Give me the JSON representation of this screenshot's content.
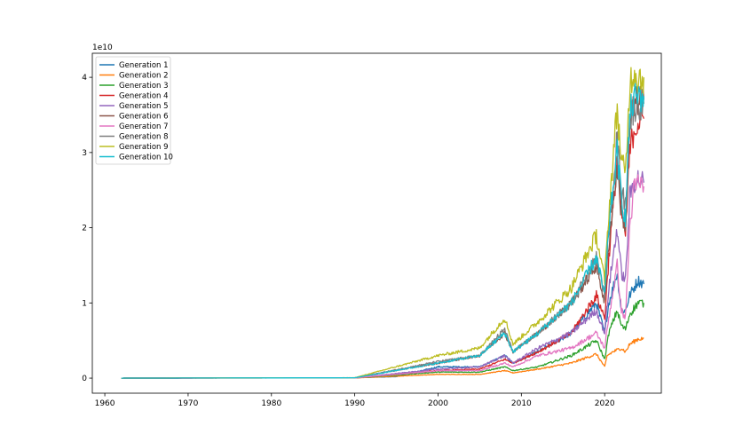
{
  "chart_data": {
    "type": "line",
    "title": "",
    "xlabel": "",
    "ylabel": "",
    "y_offset_label": "1e10",
    "xlim": [
      1958.5,
      2026.8
    ],
    "ylim": [
      -0.2,
      4.32
    ],
    "x_ticks": [
      1960,
      1970,
      1980,
      1990,
      2000,
      2010,
      2020
    ],
    "x_tick_labels": [
      "1960",
      "1970",
      "1980",
      "1990",
      "2000",
      "2010",
      "2020"
    ],
    "y_ticks": [
      0,
      1,
      2,
      3,
      4
    ],
    "y_tick_labels": [
      "0",
      "1",
      "2",
      "3",
      "4"
    ],
    "legend_position": "top-left",
    "grid": false,
    "series": [
      {
        "name": "Generation 1",
        "color": "#1f77b4",
        "x": [
          1962,
          1990,
          1995,
          2000,
          2005,
          2008,
          2009,
          2012,
          2016,
          2019,
          2020,
          2020.5,
          2021.5,
          2022,
          2022.5,
          2023,
          2024,
          2024.7
        ],
        "y": [
          0,
          0.005,
          0.02,
          0.15,
          0.15,
          0.3,
          0.2,
          0.35,
          0.6,
          1.0,
          0.6,
          1.0,
          1.4,
          0.9,
          0.9,
          1.1,
          1.3,
          1.25
        ]
      },
      {
        "name": "Generation 2",
        "color": "#ff7f0e",
        "x": [
          1962,
          1990,
          2000,
          2005,
          2008,
          2009,
          2012,
          2016,
          2019,
          2020,
          2020.3,
          2021,
          2022,
          2022.5,
          2023,
          2024,
          2024.7
        ],
        "y": [
          0,
          0.002,
          0.05,
          0.05,
          0.1,
          0.07,
          0.12,
          0.2,
          0.32,
          0.15,
          0.3,
          0.35,
          0.4,
          0.35,
          0.45,
          0.52,
          0.53
        ]
      },
      {
        "name": "Generation 3",
        "color": "#2ca02c",
        "x": [
          1962,
          1990,
          2000,
          2005,
          2008,
          2009,
          2012,
          2016,
          2019,
          2020,
          2020.5,
          2021.5,
          2022,
          2022.5,
          2023,
          2024,
          2024.7
        ],
        "y": [
          0,
          0.003,
          0.08,
          0.08,
          0.15,
          0.1,
          0.15,
          0.3,
          0.5,
          0.25,
          0.6,
          0.9,
          0.7,
          0.65,
          0.85,
          1.0,
          1.0
        ]
      },
      {
        "name": "Generation 4",
        "color": "#d62728",
        "x": [
          1962,
          1990,
          2000,
          2005,
          2008,
          2009,
          2012,
          2016,
          2019,
          2020,
          2020.5,
          2021.5,
          2022,
          2022.5,
          2023,
          2023.5,
          2024,
          2024.7
        ],
        "y": [
          0,
          0.004,
          0.1,
          0.12,
          0.25,
          0.2,
          0.35,
          0.6,
          1.1,
          0.8,
          1.6,
          2.9,
          2.2,
          1.9,
          3.0,
          3.3,
          3.4,
          3.45
        ]
      },
      {
        "name": "Generation 5",
        "color": "#9467bd",
        "x": [
          1962,
          1990,
          2000,
          2005,
          2008,
          2009,
          2012,
          2016,
          2019,
          2020,
          2020.5,
          2021.5,
          2022,
          2022.5,
          2023,
          2023.5,
          2024,
          2024.7
        ],
        "y": [
          0,
          0.004,
          0.12,
          0.15,
          0.3,
          0.2,
          0.4,
          0.6,
          0.9,
          0.6,
          1.2,
          2.0,
          1.4,
          1.3,
          2.4,
          2.6,
          2.65,
          2.6
        ]
      },
      {
        "name": "Generation 6",
        "color": "#8c564b",
        "x": [
          1962,
          1990,
          2000,
          2005,
          2008,
          2009,
          2012,
          2016,
          2019,
          2020,
          2020.5,
          2021.5,
          2022,
          2022.5,
          2023,
          2023.5,
          2024,
          2024.7
        ],
        "y": [
          0,
          0.005,
          0.2,
          0.3,
          0.6,
          0.35,
          0.6,
          1.0,
          1.5,
          1.0,
          1.8,
          2.8,
          2.2,
          2.0,
          3.3,
          3.6,
          3.7,
          3.7
        ]
      },
      {
        "name": "Generation 7",
        "color": "#e377c2",
        "x": [
          1962,
          1990,
          2000,
          2005,
          2008,
          2009,
          2012,
          2016,
          2019,
          2020,
          2020.5,
          2021.5,
          2022,
          2022.5,
          2023,
          2023.5,
          2024,
          2024.7
        ],
        "y": [
          0,
          0.003,
          0.1,
          0.1,
          0.2,
          0.15,
          0.3,
          0.4,
          0.6,
          0.4,
          0.8,
          1.5,
          0.9,
          0.8,
          2.0,
          2.5,
          2.6,
          2.55
        ]
      },
      {
        "name": "Generation 8",
        "color": "#7f7f7f",
        "x": [
          1962,
          1990,
          2000,
          2005,
          2008,
          2009,
          2012,
          2016,
          2019,
          2020,
          2020.5,
          2021.5,
          2022,
          2022.5,
          2023,
          2023.5,
          2024,
          2024.7
        ],
        "y": [
          0,
          0.005,
          0.22,
          0.3,
          0.65,
          0.35,
          0.6,
          1.0,
          1.6,
          1.1,
          2.0,
          3.2,
          2.5,
          2.3,
          3.4,
          3.6,
          3.65,
          3.65
        ]
      },
      {
        "name": "Generation 9",
        "color": "#bcbd22",
        "x": [
          1962,
          1990,
          2000,
          2005,
          2008,
          2009,
          2012,
          2016,
          2019,
          2020,
          2020.5,
          2021.5,
          2022,
          2022.5,
          2023,
          2023.5,
          2024,
          2024.7
        ],
        "y": [
          0,
          0.006,
          0.3,
          0.4,
          0.8,
          0.45,
          0.75,
          1.2,
          1.9,
          1.3,
          2.2,
          3.6,
          2.9,
          2.7,
          3.9,
          4.1,
          4.0,
          4.0
        ]
      },
      {
        "name": "Generation 10",
        "color": "#17becf",
        "x": [
          1962,
          1990,
          2000,
          2005,
          2008,
          2009,
          2012,
          2016,
          2019,
          2020,
          2020.5,
          2021.5,
          2022,
          2022.5,
          2023,
          2023.5,
          2024,
          2024.7
        ],
        "y": [
          0,
          0.005,
          0.2,
          0.3,
          0.6,
          0.35,
          0.6,
          1.0,
          1.6,
          1.1,
          2.0,
          3.0,
          2.4,
          2.1,
          3.5,
          3.7,
          3.75,
          3.75
        ]
      }
    ]
  }
}
